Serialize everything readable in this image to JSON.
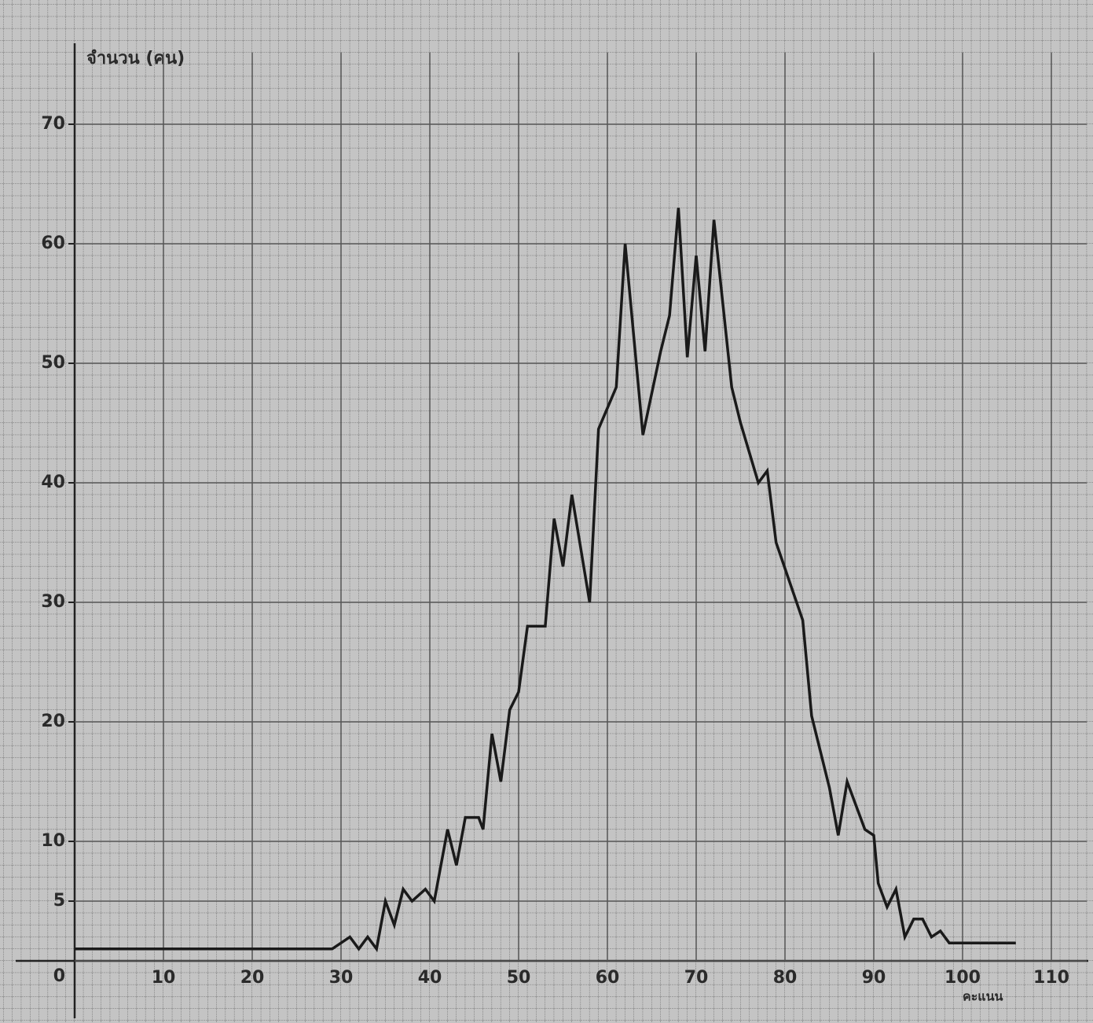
{
  "chart_data": {
    "type": "line",
    "y_axis_label": "จำนวน (คน)",
    "x_axis_label": "คะแนน",
    "x": [
      0,
      29,
      31,
      32,
      33,
      34,
      35,
      36,
      37,
      38,
      39.5,
      40.5,
      42,
      43,
      44,
      45.5,
      46,
      47,
      48,
      49,
      50,
      51,
      53,
      54,
      55,
      56,
      58,
      59,
      61,
      62,
      64,
      66,
      67,
      68,
      69,
      70,
      71,
      72,
      74,
      75,
      77,
      78,
      79,
      82,
      83,
      85,
      86,
      87,
      89,
      90,
      90.5,
      91.5,
      92.5,
      93.5,
      94.5,
      95.5,
      96.5,
      97.5,
      98.5,
      106
    ],
    "values": [
      1,
      1,
      2,
      1,
      2,
      1,
      5,
      3,
      6,
      5,
      6,
      5,
      11,
      8,
      12,
      12,
      11,
      19,
      15,
      21,
      22.5,
      28,
      28,
      37,
      33,
      39,
      30,
      44.5,
      48,
      60,
      44,
      51,
      54,
      63,
      50.5,
      59,
      51,
      62,
      48,
      45,
      40,
      41,
      35,
      28.5,
      20.5,
      14.5,
      10.5,
      15,
      11,
      10.5,
      6.5,
      4.5,
      6,
      2,
      3.5,
      3.5,
      2,
      2.5,
      1.5,
      1.5
    ],
    "color": "#1a1a1a",
    "xlim": [
      0,
      114
    ],
    "xticks": [
      10,
      20,
      30,
      40,
      50,
      60,
      70,
      80,
      90,
      100,
      110
    ],
    "ylim": [
      0,
      76
    ],
    "yticks": [
      0,
      5,
      10,
      20,
      30,
      40,
      50,
      60,
      70
    ],
    "grid": true
  }
}
